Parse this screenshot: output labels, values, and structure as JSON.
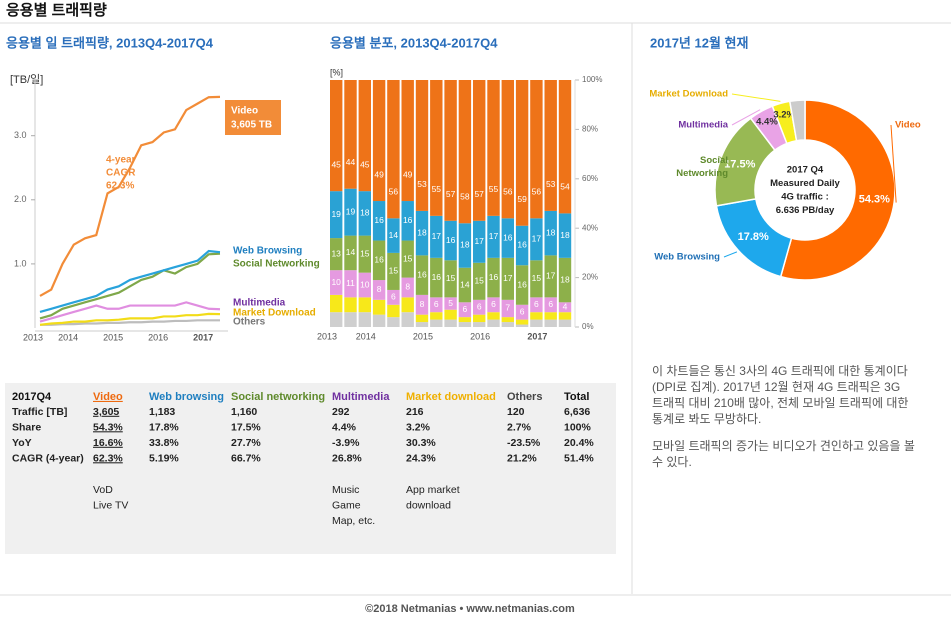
{
  "header": {
    "title": "응용별 트래픽량"
  },
  "chart_data": [
    {
      "type": "line",
      "title": "응용별 일 트래픽량, 2013Q4-2017Q4",
      "y_label": "[TB/일]",
      "categories": [
        "2013",
        "2014",
        null,
        null,
        null,
        "2015",
        null,
        null,
        null,
        "2016",
        null,
        null,
        null,
        "2017",
        null,
        null,
        null
      ],
      "ylim": [
        0,
        3.9
      ],
      "yticks": [
        {
          "value": 1,
          "label": "1.0"
        },
        {
          "value": 2,
          "label": "2.0"
        },
        {
          "value": 3,
          "label": "3.0"
        }
      ],
      "grid": false,
      "series": [
        {
          "name": "Video",
          "color": "#f28c38",
          "label_color": "#ffffff",
          "end_label": "3,605 TB",
          "values": [
            0.5,
            0.6,
            1.0,
            1.3,
            1.4,
            1.45,
            2.1,
            2.2,
            2.5,
            2.85,
            2.9,
            3.05,
            3.1,
            3.4,
            3.5,
            3.6,
            3.605
          ]
        },
        {
          "name": "Web Browsing",
          "color": "#29a3dc",
          "label_color": "#1f7fc0",
          "values": [
            0.25,
            0.3,
            0.35,
            0.4,
            0.45,
            0.5,
            0.6,
            0.65,
            0.75,
            0.8,
            0.85,
            0.9,
            0.95,
            1.0,
            1.05,
            1.2,
            1.183
          ]
        },
        {
          "name": "Social Networking",
          "color": "#7fa84a",
          "label_color": "#5f8a2c",
          "values": [
            0.15,
            0.2,
            0.3,
            0.35,
            0.4,
            0.45,
            0.5,
            0.55,
            0.65,
            0.75,
            0.8,
            0.9,
            0.85,
            0.95,
            1.0,
            1.15,
            1.16
          ]
        },
        {
          "name": "Multimedia",
          "color": "#e08ee0",
          "label_color": "#7030a0",
          "values": [
            0.1,
            0.15,
            0.2,
            0.25,
            0.3,
            0.35,
            0.3,
            0.3,
            0.35,
            0.35,
            0.35,
            0.35,
            0.35,
            0.4,
            0.35,
            0.3,
            0.292
          ]
        },
        {
          "name": "Market Download",
          "color": "#f2dc18",
          "label_color": "#e6ad00",
          "values": [
            0.05,
            0.07,
            0.08,
            0.1,
            0.1,
            0.12,
            0.12,
            0.13,
            0.15,
            0.15,
            0.15,
            0.18,
            0.18,
            0.2,
            0.2,
            0.22,
            0.216
          ]
        },
        {
          "name": "Others",
          "color": "#bdbdbd",
          "label_color": "#777777",
          "values": [
            0.05,
            0.05,
            0.06,
            0.06,
            0.07,
            0.07,
            0.08,
            0.08,
            0.09,
            0.09,
            0.1,
            0.1,
            0.11,
            0.11,
            0.12,
            0.12,
            0.12
          ]
        }
      ],
      "annotation": [
        "4-year",
        "CAGR",
        "62.3%"
      ]
    },
    {
      "type": "bar",
      "stacked": true,
      "title": "응용별 분포, 2013Q4-2017Q4",
      "y_label": "[%]",
      "categories": [
        "2013",
        "2014",
        null,
        null,
        null,
        "2015",
        null,
        null,
        null,
        "2016",
        null,
        null,
        null,
        "2017",
        null,
        null,
        null
      ],
      "ylim": [
        0,
        100
      ],
      "yticks": [
        {
          "value": 0,
          "label": "0%"
        },
        {
          "value": 20,
          "label": "20%"
        },
        {
          "value": 40,
          "label": "40%"
        },
        {
          "value": 60,
          "label": "60%"
        },
        {
          "value": 80,
          "label": "80%"
        },
        {
          "value": 100,
          "label": "100%"
        }
      ],
      "series": [
        {
          "name": "Video",
          "color": "#ee7318",
          "show_labels": true,
          "values": [
            45,
            44,
            45,
            49,
            56,
            49,
            53,
            55,
            57,
            58,
            57,
            55,
            56,
            59,
            56,
            53,
            54
          ]
        },
        {
          "name": "Web Browsing",
          "color": "#2aa2d4",
          "show_labels": true,
          "values": [
            19,
            19,
            18,
            16,
            14,
            16,
            18,
            17,
            16,
            18,
            17,
            17,
            16,
            16,
            17,
            18,
            18
          ]
        },
        {
          "name": "Social Networking",
          "color": "#8db04a",
          "show_labels": true,
          "values": [
            13,
            14,
            15,
            16,
            15,
            15,
            16,
            16,
            15,
            14,
            15,
            16,
            17,
            16,
            15,
            17,
            18
          ]
        },
        {
          "name": "Multimedia",
          "color": "#e59ae0",
          "show_labels": true,
          "values": [
            10,
            11,
            10,
            8,
            6,
            8,
            8,
            6,
            5,
            6,
            6,
            6,
            7,
            6,
            6,
            6,
            4
          ]
        },
        {
          "name": "Market Download",
          "color": "#f7e81a",
          "show_labels": false,
          "values": [
            7,
            6,
            6,
            6,
            5,
            6,
            3,
            3,
            4,
            2,
            3,
            3,
            2,
            2,
            3,
            3,
            3
          ]
        },
        {
          "name": "Others",
          "color": "#cfcfcf",
          "show_labels": false,
          "values": [
            6,
            6,
            6,
            5,
            4,
            6,
            2,
            3,
            3,
            2,
            2,
            3,
            2,
            1,
            3,
            3,
            3
          ]
        }
      ]
    },
    {
      "type": "pie",
      "title": "2017년 12월 현재",
      "categories": [
        "Video",
        "Web Browsing",
        "Social Networking",
        "Multimedia",
        "Market Download",
        "Others"
      ],
      "values": [
        54.3,
        17.8,
        17.5,
        4.4,
        3.2,
        2.7
      ],
      "value_labels": [
        "54.3%",
        "17.8%",
        "17.5%",
        "4.4%",
        "3.2%",
        null
      ],
      "colors": [
        "#ff6a00",
        "#1ea8ec",
        "#98b954",
        "#e9a3e6",
        "#f7ee1e",
        "#cccccc"
      ],
      "label_colors": [
        "#ee6a10",
        "#1f6fb5",
        "#5f8a2c",
        "#7030a0",
        "#e6ad00",
        null
      ],
      "center_text": [
        "2017 Q4",
        "Measured Daily",
        "4G traffic :",
        "6.636 PB/day"
      ]
    }
  ],
  "table": {
    "header": [
      "2017Q4",
      "Video",
      "Web browsing",
      "Social networking",
      "Multimedia",
      "Market download",
      "Others",
      "Total"
    ],
    "rows": [
      [
        "Traffic [TB]",
        "3,605",
        "1,183",
        "1,160",
        "292",
        "216",
        "120",
        "6,636"
      ],
      [
        "Share",
        "54.3%",
        "17.8%",
        "17.5%",
        "4.4%",
        "3.2%",
        "2.7%",
        "100%"
      ],
      [
        "YoY",
        "16.6%",
        "33.8%",
        "27.7%",
        "-3.9%",
        "30.3%",
        "-23.5%",
        "20.4%"
      ],
      [
        "CAGR (4-year)",
        "62.3%",
        "5.19%",
        "66.7%",
        "26.8%",
        "24.3%",
        "21.2%",
        "51.4%"
      ]
    ],
    "notes": [
      [],
      [
        "VoD",
        "Live TV"
      ],
      [],
      [],
      [
        "Music",
        "Game",
        "Map, etc."
      ],
      [
        "App market",
        "download"
      ],
      [],
      []
    ]
  },
  "text": {
    "paragraphs": [
      [
        "이 차트들은 통신 3사의 4G 트래픽에 대한 통계이다",
        "(DPI로 집계). 2017년 12월 현재 4G 트래픽은 3G",
        "트래픽 대비 210배 많아, 전체 모바일 트래픽에 대한",
        "통계로 봐도 무방하다."
      ],
      [
        "모바일 트래픽의 증가는 비디오가 견인하고 있음을 볼",
        "수 있다."
      ]
    ]
  },
  "footer": {
    "text": "©2018 Netmanias • www.netmanias.com"
  }
}
